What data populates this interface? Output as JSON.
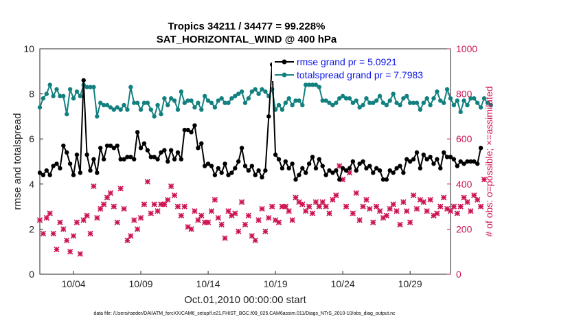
{
  "chart_data": {
    "type": "line",
    "title": "Tropics 34211 / 34477 = 99.228%",
    "subtitle": "SAT_HORIZONTAL_WIND @ 400 hPa",
    "xlabel": "Oct.01,2010 00:00:00 start",
    "ylabel": "rmse and totalspread",
    "ylabel_right": "# of obs: o=possible; ×=assimilated",
    "xlim": [
      1.5,
      32.0
    ],
    "ylim": [
      0,
      10
    ],
    "ylim_right": [
      0,
      1000
    ],
    "yticks": [
      "0",
      "2",
      "4",
      "6",
      "8",
      "10"
    ],
    "yticks_right": [
      "0",
      "200",
      "400",
      "600",
      "800",
      "1000"
    ],
    "xticks": [
      {
        "label": "10/04",
        "value": 4
      },
      {
        "label": "10/09",
        "value": 9
      },
      {
        "label": "10/14",
        "value": 14
      },
      {
        "label": "10/19",
        "value": 19
      },
      {
        "label": "10/24",
        "value": 24
      },
      {
        "label": "10/29",
        "value": 29
      }
    ],
    "x_start": 1.5,
    "x_step": 0.25,
    "series": [
      {
        "name": "rmse grand pr = 5.0921",
        "color": "#000000",
        "axis": "left",
        "values": [
          4.5,
          4.4,
          4.6,
          4.4,
          4.8,
          4.9,
          4.7,
          5.7,
          5.4,
          4.9,
          4.4,
          5.3,
          4.5,
          8.6,
          5.3,
          4.6,
          5.1,
          4.5,
          5.6,
          5.1,
          5.7,
          5.7,
          5.6,
          5.7,
          5.1,
          5.1,
          5.2,
          5.2,
          5.1,
          6.3,
          5.6,
          5.8,
          5.5,
          5.2,
          5.2,
          5.1,
          5.4,
          5.5,
          5.0,
          5.5,
          5.1,
          5.4,
          5.1,
          6.4,
          6.4,
          6.3,
          6.6,
          5.6,
          5.8,
          4.8,
          4.9,
          4.8,
          4.4,
          4.7,
          4.5,
          4.9,
          4.4,
          4.5,
          4.7,
          5.0,
          5.6,
          4.8,
          4.6,
          4.8,
          4.4,
          4.6,
          4.3,
          4.6,
          7.0,
          9.3,
          5.3,
          5.1,
          4.7,
          5.0,
          4.7,
          4.9,
          4.2,
          4.4,
          4.7,
          4.5,
          4.9,
          5.2,
          4.7,
          5.1,
          4.8,
          4.4,
          4.6,
          4.5,
          4.6,
          4.2,
          4.7,
          4.6,
          4.7,
          5.0,
          4.6,
          4.9,
          5.0,
          4.7,
          4.8,
          4.5,
          4.7,
          4.6,
          4.2,
          4.2,
          4.6,
          4.5,
          4.7,
          4.8,
          4.5,
          5.1,
          5.0,
          5.1,
          5.4,
          4.7,
          5.3,
          5.1,
          5.2,
          4.9,
          5.1,
          4.7,
          5.4,
          5.2,
          5.2,
          5.1,
          4.8,
          5.0,
          4.9,
          5.0,
          5.0,
          5.0,
          4.9,
          5.6
        ]
      },
      {
        "name": "totalspread grand pr = 7.7983",
        "color": "#138080",
        "axis": "left",
        "values": [
          7.4,
          7.8,
          8.0,
          8.4,
          7.9,
          8.2,
          7.9,
          7.9,
          7.1,
          8.2,
          7.8,
          8.1,
          7.9,
          8.4,
          8.3,
          8.3,
          8.3,
          7.0,
          7.6,
          7.5,
          7.5,
          7.4,
          7.3,
          7.4,
          7.3,
          7.5,
          7.3,
          8.3,
          7.6,
          7.6,
          7.3,
          7.6,
          7.6,
          7.3,
          7.0,
          7.5,
          7.1,
          7.8,
          7.5,
          7.8,
          7.7,
          7.3,
          8.1,
          7.6,
          7.7,
          7.7,
          7.4,
          7.6,
          7.3,
          7.9,
          7.7,
          7.6,
          7.4,
          7.7,
          7.8,
          7.6,
          7.6,
          7.8,
          7.9,
          8.0,
          8.1,
          7.6,
          7.8,
          8.1,
          8.2,
          8.0,
          8.2,
          8.1,
          7.9,
          8.2,
          7.3,
          7.5,
          7.3,
          7.6,
          7.8,
          7.5,
          7.7,
          7.7,
          7.5,
          8.4,
          8.4,
          8.4,
          8.4,
          8.3,
          7.7,
          7.7,
          7.6,
          7.5,
          7.6,
          7.8,
          7.9,
          7.8,
          7.8,
          7.6,
          7.7,
          7.4,
          7.5,
          7.8,
          7.6,
          7.6,
          7.7,
          7.9,
          7.6,
          7.5,
          7.7,
          8.0,
          7.6,
          7.5,
          7.8,
          7.9,
          7.6,
          7.6,
          7.6,
          7.3,
          7.6,
          7.8,
          7.5,
          7.8,
          8.1,
          7.7,
          7.6,
          8.2,
          7.8,
          7.5,
          7.7,
          7.2,
          7.7,
          7.5,
          7.8,
          7.8,
          7.6,
          7.4,
          7.8,
          7.6,
          7.5
        ]
      },
      {
        "name": "# of obs",
        "color": "#cc1453",
        "axis": "right",
        "marker": "x",
        "values": [
          240,
          180,
          250,
          270,
          180,
          110,
          230,
          200,
          150,
          100,
          170,
          230,
          90,
          240,
          260,
          180,
          390,
          250,
          290,
          310,
          340,
          360,
          300,
          230,
          380,
          290,
          150,
          170,
          240,
          200,
          250,
          310,
          410,
          270,
          310,
          280,
          310,
          310,
          330,
          390,
          350,
          300,
          260,
          300,
          210,
          200,
          280,
          240,
          260,
          230,
          230,
          280,
          330,
          250,
          220,
          160,
          280,
          260,
          270,
          190,
          320,
          220,
          260,
          170,
          150,
          240,
          290,
          190,
          250,
          300,
          240,
          230,
          300,
          300,
          280,
          240,
          340,
          320,
          310,
          280,
          300,
          270,
          320,
          300,
          320,
          300,
          270,
          330,
          350,
          480,
          420,
          300,
          450,
          270,
          360,
          240,
          300,
          330,
          290,
          230,
          300,
          280,
          250,
          260,
          290,
          310,
          280,
          220,
          320,
          280,
          230,
          350,
          290,
          330,
          320,
          280,
          330,
          260,
          270,
          300,
          340,
          290,
          280,
          300,
          270,
          300,
          340,
          320,
          280,
          350,
          330,
          300,
          420
        ]
      }
    ],
    "legend": [
      {
        "label": "rmse grand pr = 5.0921",
        "color": "#0a14e6",
        "line_color": "#000000"
      },
      {
        "label": "totalspread grand pr = 7.7983",
        "color": "#0a14e6",
        "line_color": "#138080"
      }
    ],
    "legend_position": "top-right",
    "footer": "data file: /Users/raeder/DAI/ATM_forcXX/CAM6_setup/f.e21.FHIST_BGC.f09_025.CAM6assim.011/Diags_NTrS_2010-10/obs_diag_output.nc"
  }
}
